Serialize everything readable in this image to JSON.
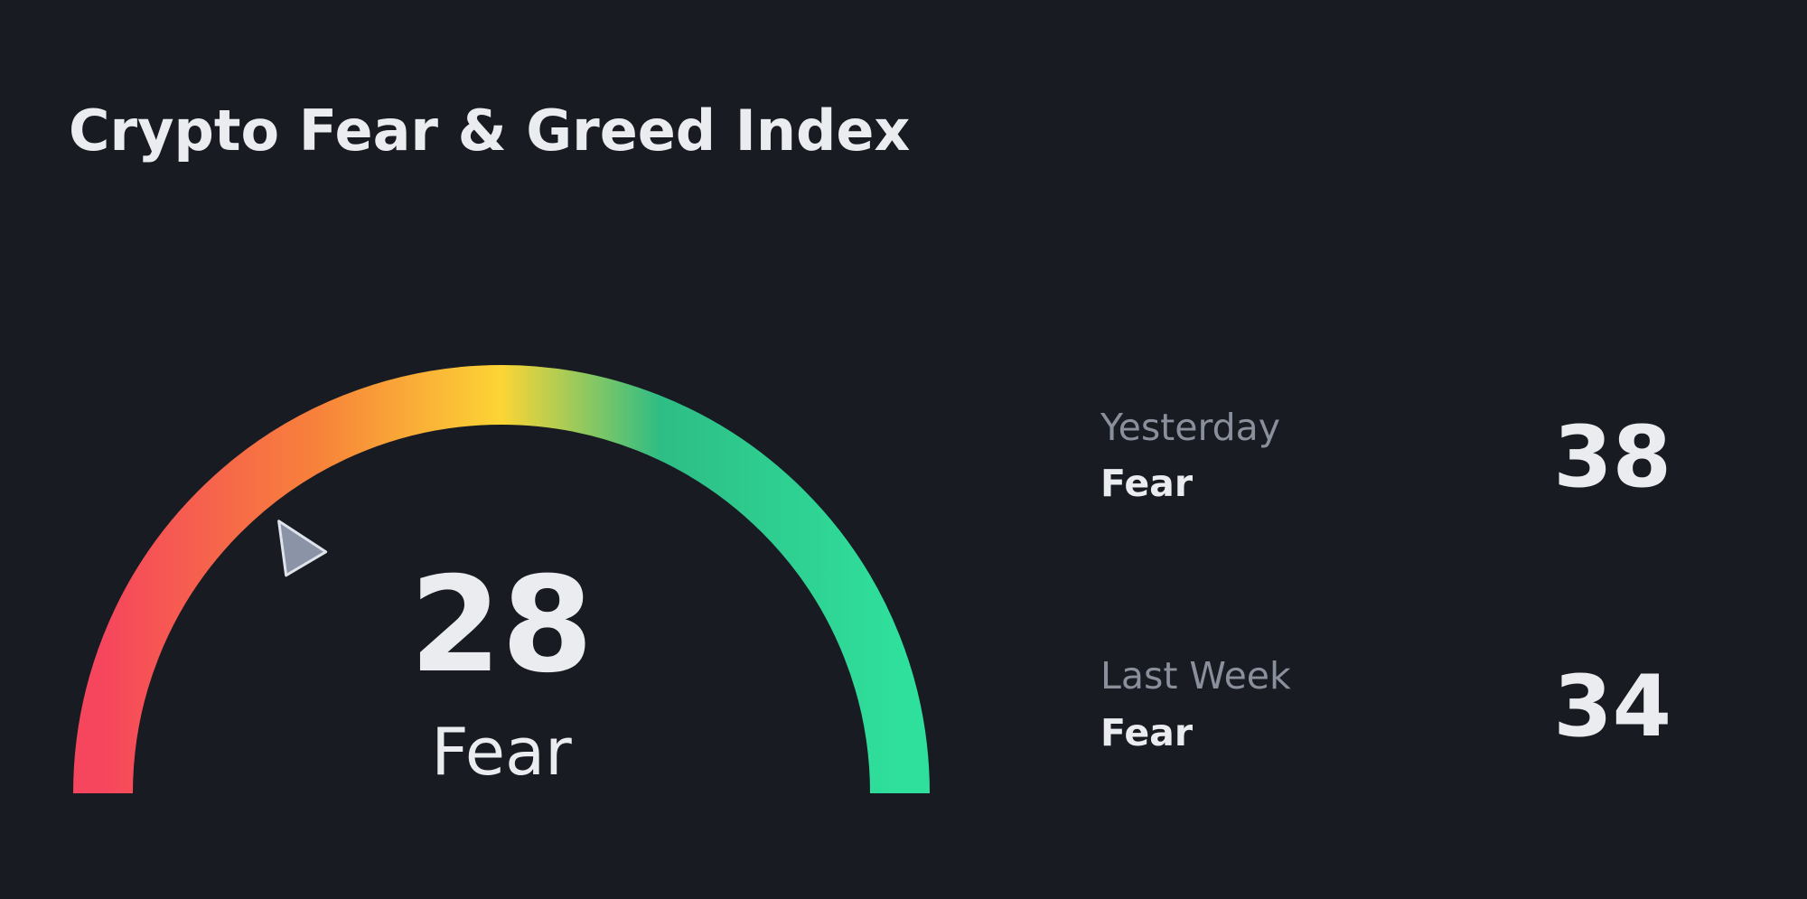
{
  "header": {
    "title": "Crypto Fear & Greed Index"
  },
  "gauge": {
    "value": 28,
    "label": "Fear",
    "range": [
      0,
      100
    ]
  },
  "history": [
    {
      "period": "Yesterday",
      "label": "Fear",
      "value": 38
    },
    {
      "period": "Last Week",
      "label": "Fear",
      "value": 34
    }
  ]
}
